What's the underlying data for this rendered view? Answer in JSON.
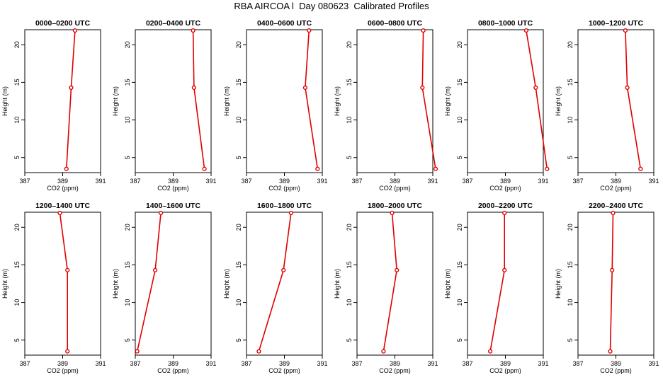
{
  "title": "RBA AIRCOA l  Day 080623  Calibrated Profiles",
  "chart_data": [
    {
      "type": "line",
      "title": "0000–0200 UTC",
      "xlabel": "CO2 (ppm)",
      "ylabel": "Height (m)",
      "xlim": [
        387,
        391
      ],
      "ylim": [
        3,
        22
      ],
      "x_ticks": [
        387,
        389,
        391
      ],
      "y_ticks": [
        5,
        10,
        15,
        20
      ],
      "series": [
        {
          "x": [
            389.2,
            389.45,
            389.65
          ],
          "y": [
            3.5,
            14.3,
            21.9
          ]
        }
      ]
    },
    {
      "type": "line",
      "title": "0200–0400 UTC",
      "xlabel": "CO2 (ppm)",
      "ylabel": "Height (m)",
      "xlim": [
        387,
        391
      ],
      "ylim": [
        3,
        22
      ],
      "x_ticks": [
        387,
        389,
        391
      ],
      "y_ticks": [
        5,
        10,
        15,
        20
      ],
      "series": [
        {
          "x": [
            390.65,
            390.1,
            390.05
          ],
          "y": [
            3.5,
            14.3,
            21.9
          ]
        }
      ]
    },
    {
      "type": "line",
      "title": "0400–0600 UTC",
      "xlabel": "CO2 (ppm)",
      "ylabel": "Height (m)",
      "xlim": [
        387,
        391
      ],
      "ylim": [
        3,
        22
      ],
      "x_ticks": [
        387,
        389,
        391
      ],
      "y_ticks": [
        5,
        10,
        15,
        20
      ],
      "series": [
        {
          "x": [
            390.75,
            390.1,
            390.3
          ],
          "y": [
            3.5,
            14.3,
            21.9
          ]
        }
      ]
    },
    {
      "type": "line",
      "title": "0600–0800 UTC",
      "xlabel": "CO2 (ppm)",
      "ylabel": "Height (m)",
      "xlim": [
        387,
        391
      ],
      "ylim": [
        3,
        22
      ],
      "x_ticks": [
        387,
        389,
        391
      ],
      "y_ticks": [
        5,
        10,
        15,
        20
      ],
      "series": [
        {
          "x": [
            391.15,
            390.45,
            390.5
          ],
          "y": [
            3.5,
            14.3,
            21.9
          ]
        }
      ]
    },
    {
      "type": "line",
      "title": "0800–1000 UTC",
      "xlabel": "CO2 (ppm)",
      "ylabel": "Height (m)",
      "xlim": [
        387,
        391
      ],
      "ylim": [
        3,
        22
      ],
      "x_ticks": [
        387,
        389,
        391
      ],
      "y_ticks": [
        5,
        10,
        15,
        20
      ],
      "series": [
        {
          "x": [
            391.2,
            390.6,
            390.1
          ],
          "y": [
            3.5,
            14.3,
            21.9
          ]
        }
      ]
    },
    {
      "type": "line",
      "title": "1000–1200 UTC",
      "xlabel": "CO2 (ppm)",
      "ylabel": "Height (m)",
      "xlim": [
        387,
        391
      ],
      "ylim": [
        3,
        22
      ],
      "x_ticks": [
        387,
        389,
        391
      ],
      "y_ticks": [
        5,
        10,
        15,
        20
      ],
      "series": [
        {
          "x": [
            390.3,
            389.6,
            389.5
          ],
          "y": [
            3.5,
            14.3,
            21.9
          ]
        }
      ]
    },
    {
      "type": "line",
      "title": "1200–1400 UTC",
      "xlabel": "CO2 (ppm)",
      "ylabel": "Height (m)",
      "xlim": [
        387,
        391
      ],
      "ylim": [
        3,
        22
      ],
      "x_ticks": [
        387,
        389,
        391
      ],
      "y_ticks": [
        5,
        10,
        15,
        20
      ],
      "series": [
        {
          "x": [
            389.25,
            389.25,
            388.85
          ],
          "y": [
            3.5,
            14.3,
            21.9
          ]
        }
      ]
    },
    {
      "type": "line",
      "title": "1400–1600 UTC",
      "xlabel": "CO2 (ppm)",
      "ylabel": "Height (m)",
      "xlim": [
        387,
        391
      ],
      "ylim": [
        3,
        22
      ],
      "x_ticks": [
        387,
        389,
        391
      ],
      "y_ticks": [
        5,
        10,
        15,
        20
      ],
      "series": [
        {
          "x": [
            387.1,
            388.05,
            388.35
          ],
          "y": [
            3.5,
            14.3,
            21.9
          ]
        }
      ]
    },
    {
      "type": "line",
      "title": "1600–1800 UTC",
      "xlabel": "CO2 (ppm)",
      "ylabel": "Height (m)",
      "xlim": [
        387,
        391
      ],
      "ylim": [
        3,
        22
      ],
      "x_ticks": [
        387,
        389,
        391
      ],
      "y_ticks": [
        5,
        10,
        15,
        20
      ],
      "series": [
        {
          "x": [
            387.65,
            388.95,
            389.35
          ],
          "y": [
            3.5,
            14.3,
            21.9
          ]
        }
      ]
    },
    {
      "type": "line",
      "title": "1800–2000 UTC",
      "xlabel": "CO2 (ppm)",
      "ylabel": "Height (m)",
      "xlim": [
        387,
        391
      ],
      "ylim": [
        3,
        22
      ],
      "x_ticks": [
        387,
        389,
        391
      ],
      "y_ticks": [
        5,
        10,
        15,
        20
      ],
      "series": [
        {
          "x": [
            388.4,
            389.1,
            388.85
          ],
          "y": [
            3.5,
            14.3,
            21.9
          ]
        }
      ]
    },
    {
      "type": "line",
      "title": "2000–2200 UTC",
      "xlabel": "CO2 (ppm)",
      "ylabel": "Height (m)",
      "xlim": [
        387,
        391
      ],
      "ylim": [
        3,
        22
      ],
      "x_ticks": [
        387,
        389,
        391
      ],
      "y_ticks": [
        5,
        10,
        15,
        20
      ],
      "series": [
        {
          "x": [
            388.2,
            388.95,
            388.95
          ],
          "y": [
            3.5,
            14.3,
            21.9
          ]
        }
      ]
    },
    {
      "type": "line",
      "title": "2200–2400 UTC",
      "xlabel": "CO2 (ppm)",
      "ylabel": "Height (m)",
      "xlim": [
        387,
        391
      ],
      "ylim": [
        3,
        22
      ],
      "x_ticks": [
        387,
        389,
        391
      ],
      "y_ticks": [
        5,
        10,
        15,
        20
      ],
      "series": [
        {
          "x": [
            388.7,
            388.8,
            388.85
          ],
          "y": [
            3.5,
            14.3,
            21.9
          ]
        }
      ]
    }
  ],
  "colors": {
    "series": "#e00000",
    "axis": "#000000"
  }
}
